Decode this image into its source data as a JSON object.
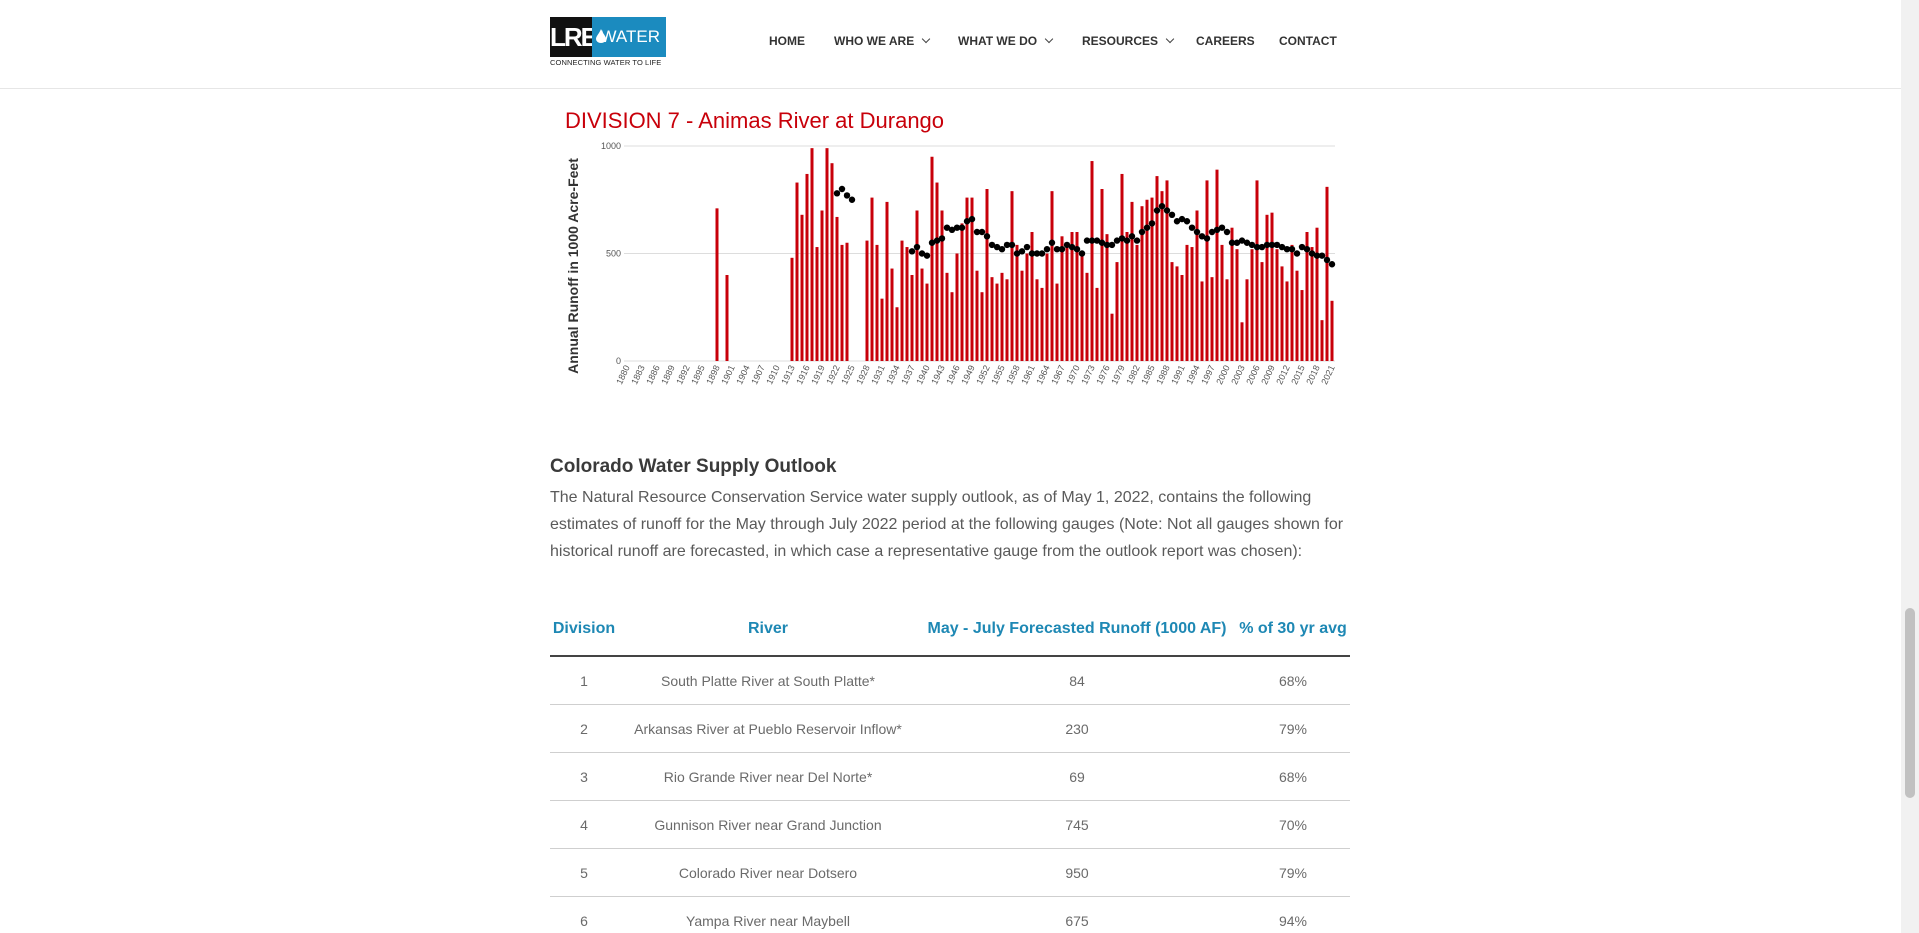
{
  "header": {
    "logo": {
      "mark": "LRE",
      "name": "WATER",
      "tagline": "CONNECTING WATER TO LIFE"
    },
    "nav": [
      "HOME",
      "WHO WE ARE",
      "WHAT WE DO",
      "RESOURCES",
      "CAREERS",
      "CONTACT"
    ]
  },
  "chart_data": {
    "type": "bar",
    "title": "DIVISION 7 - Animas River at Durango",
    "y_label": "Annual Runoff in 1000 Acre-Feet",
    "categories": [
      "1880",
      null,
      null,
      "1883",
      null,
      null,
      "1886",
      null,
      null,
      "1889",
      null,
      null,
      "1892",
      null,
      null,
      "1895",
      null,
      null,
      "1898",
      null,
      null,
      "1901",
      null,
      null,
      "1904",
      null,
      null,
      "1907",
      null,
      null,
      "1910",
      null,
      null,
      "1913",
      null,
      null,
      "1916",
      null,
      null,
      "1919",
      null,
      null,
      "1922",
      null,
      null,
      "1925",
      null,
      null,
      "1928",
      null,
      null,
      "1931",
      null,
      null,
      "1934",
      null,
      null,
      "1937",
      null,
      null,
      "1940",
      null,
      null,
      "1943",
      null,
      null,
      "1946",
      null,
      null,
      "1949",
      null,
      null,
      "1952",
      null,
      null,
      "1955",
      null,
      null,
      "1958",
      null,
      null,
      "1961",
      null,
      null,
      "1964",
      null,
      null,
      "1967",
      null,
      null,
      "1970",
      null,
      null,
      "1973",
      null,
      null,
      "1976",
      null,
      null,
      "1979",
      null,
      null,
      "1982",
      null,
      null,
      "1985",
      null,
      null,
      "1988",
      null,
      null,
      "1991",
      null,
      null,
      "1994",
      null,
      null,
      "1997",
      null,
      null,
      "2000",
      null,
      null,
      "2003",
      null,
      null,
      "2006",
      null,
      null,
      "2009",
      null,
      null,
      "2012",
      null,
      null,
      "2015",
      null,
      null,
      "2018",
      null,
      null,
      "2021"
    ],
    "series": [
      {
        "type": "bar",
        "color": "#c8000a",
        "values": [
          0,
          0,
          0,
          0,
          0,
          0,
          0,
          0,
          0,
          0,
          0,
          0,
          0,
          0,
          0,
          0,
          0,
          0,
          710,
          0,
          400,
          0,
          0,
          0,
          0,
          0,
          0,
          0,
          0,
          0,
          0,
          0,
          0,
          480,
          830,
          680,
          870,
          990,
          530,
          700,
          990,
          920,
          670,
          540,
          550,
          null,
          null,
          null,
          560,
          760,
          540,
          290,
          740,
          430,
          250,
          560,
          530,
          400,
          700,
          430,
          360,
          950,
          830,
          700,
          410,
          320,
          500,
          640,
          760,
          760,
          420,
          320,
          800,
          390,
          360,
          410,
          380,
          790,
          540,
          420,
          500,
          600,
          380,
          340,
          500,
          790,
          360,
          580,
          540,
          600,
          600,
          500,
          410,
          930,
          340,
          800,
          590,
          220,
          460,
          870,
          600,
          740,
          540,
          720,
          750,
          760,
          860,
          790,
          840,
          460,
          440,
          400,
          540,
          530,
          700,
          370,
          840,
          390,
          890,
          540,
          380,
          620,
          520,
          180,
          380,
          520,
          840,
          460,
          680,
          690,
          520,
          440,
          370,
          540,
          420,
          330,
          600,
          530,
          620,
          190,
          810,
          280
        ]
      },
      {
        "type": "scatter",
        "color": "#000000",
        "values": [
          null,
          null,
          null,
          null,
          null,
          null,
          null,
          null,
          null,
          null,
          null,
          null,
          null,
          null,
          null,
          null,
          null,
          null,
          null,
          null,
          null,
          null,
          null,
          null,
          null,
          null,
          null,
          null,
          null,
          null,
          null,
          null,
          null,
          null,
          null,
          null,
          null,
          null,
          null,
          null,
          null,
          null,
          780,
          800,
          770,
          750,
          null,
          null,
          null,
          null,
          null,
          null,
          null,
          null,
          null,
          null,
          null,
          510,
          530,
          500,
          490,
          550,
          560,
          570,
          620,
          610,
          620,
          620,
          650,
          660,
          600,
          600,
          580,
          540,
          530,
          520,
          540,
          540,
          500,
          510,
          530,
          500,
          500,
          500,
          520,
          550,
          520,
          520,
          540,
          530,
          520,
          500,
          560,
          560,
          560,
          550,
          540,
          540,
          560,
          570,
          560,
          580,
          560,
          600,
          620,
          640,
          700,
          720,
          700,
          680,
          650,
          660,
          650,
          620,
          600,
          580,
          570,
          600,
          610,
          620,
          600,
          550,
          550,
          560,
          550,
          540,
          530,
          530,
          540,
          540,
          540,
          530,
          520,
          520,
          500,
          530,
          520,
          500,
          490,
          490,
          470,
          450
        ]
      }
    ],
    "ylim": [
      0,
      1000
    ],
    "yticks": [
      0,
      500,
      1000
    ],
    "grid": true
  },
  "article": {
    "heading": "Colorado Water Supply Outlook",
    "paragraph": "The Natural Resource Conservation Service water supply outlook, as of May 1, 2022, contains the following estimates of runoff for the May through July 2022 period at the following gauges (Note: Not all gauges shown for historical runoff are forecasted, in which case a representative gauge from the outlook report was chosen):",
    "table": {
      "columns": [
        "Division",
        "River",
        "May - July Forecasted Runoff (1000 AF)",
        "% of 30 yr avg"
      ],
      "rows": [
        [
          "1",
          "South Platte River at South Platte*",
          "84",
          "68%"
        ],
        [
          "2",
          "Arkansas River at Pueblo Reservoir Inflow*",
          "230",
          "79%"
        ],
        [
          "3",
          "Rio Grande River near Del Norte*",
          "69",
          "68%"
        ],
        [
          "4",
          "Gunnison River near Grand Junction",
          "745",
          "70%"
        ],
        [
          "5",
          "Colorado River near Dotsero",
          "950",
          "79%"
        ],
        [
          "6",
          "Yampa River near Maybell",
          "675",
          "94%"
        ]
      ]
    }
  }
}
